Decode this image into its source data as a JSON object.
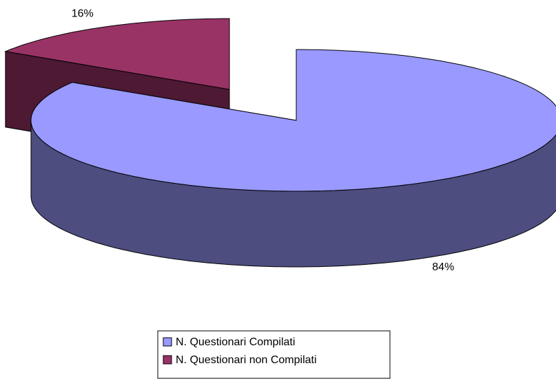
{
  "chart_data": {
    "type": "pie",
    "categories": [
      "N. Questionari Compilati",
      "N. Questionari non Compilati"
    ],
    "values": [
      84,
      16
    ],
    "value_labels": [
      "84%",
      "16%"
    ],
    "colors": [
      "#9999ff",
      "#993366"
    ],
    "side_colors": [
      "#4d4d80",
      "#4d1933"
    ],
    "legend": "bottom"
  }
}
